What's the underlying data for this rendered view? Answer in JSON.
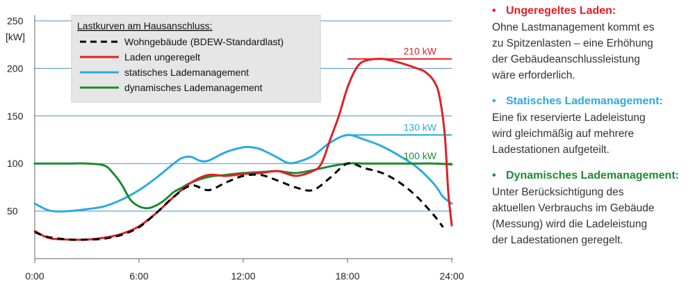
{
  "chart_data": {
    "type": "line",
    "ylabel": "[kW]",
    "ylim": [
      0,
      250
    ],
    "yticks": [
      50,
      100,
      150,
      200,
      250
    ],
    "xlim": [
      0,
      24
    ],
    "xticks": [
      0,
      6,
      12,
      18,
      24
    ],
    "xticklabels": [
      "0:00",
      "6:00",
      "12:00",
      "18:00",
      "24:00"
    ],
    "grid": true,
    "legend_title": "Lastkurven am Hausanschluss:",
    "legend_position": "top-left",
    "series": [
      {
        "name": "Wohngebäude (BDEW-Standardlast)",
        "color": "#000000",
        "style": "dashed",
        "x": [
          0,
          0.5,
          1,
          2,
          3,
          4,
          5,
          6,
          7,
          8,
          9,
          10,
          11,
          12,
          13,
          14,
          15,
          16,
          17,
          18,
          19,
          20,
          21,
          22,
          23,
          23.5
        ],
        "y": [
          28,
          24,
          22,
          20,
          20,
          21,
          25,
          33,
          48,
          65,
          77,
          72,
          80,
          87,
          88,
          82,
          75,
          72,
          85,
          100,
          95,
          90,
          80,
          65,
          45,
          33
        ]
      },
      {
        "name": "Laden ungeregelt",
        "color": "#e31e24",
        "style": "solid",
        "x": [
          0,
          0.5,
          1,
          2,
          3,
          4,
          5,
          6,
          7,
          8,
          9,
          10,
          11,
          12,
          13,
          14,
          15,
          16,
          16.5,
          17,
          17.5,
          18,
          18.5,
          19,
          20,
          21,
          22,
          22.5,
          23,
          23.3,
          23.6,
          23.8,
          24
        ],
        "y": [
          29,
          24,
          21,
          20,
          20,
          22,
          26,
          34,
          48,
          65,
          80,
          88,
          87,
          89,
          90,
          92,
          87,
          92,
          100,
          125,
          150,
          180,
          200,
          208,
          210,
          206,
          200,
          196,
          186,
          170,
          130,
          70,
          35
        ]
      },
      {
        "name": "statisches Lademanagement",
        "color": "#29abe2",
        "style": "solid",
        "x": [
          0,
          0.5,
          1,
          2,
          3,
          4,
          5,
          6,
          7,
          8,
          8.5,
          9,
          9.5,
          10,
          11,
          12,
          12.5,
          13,
          14,
          14.5,
          15,
          16,
          17,
          18,
          19,
          20,
          21,
          22,
          23,
          23.5,
          24
        ],
        "y": [
          58,
          53,
          50,
          50,
          52,
          55,
          62,
          72,
          85,
          100,
          106,
          107,
          103,
          103,
          112,
          117,
          117,
          115,
          106,
          101,
          101,
          108,
          122,
          130,
          125,
          118,
          108,
          96,
          78,
          65,
          58
        ]
      },
      {
        "name": "dynamisches Lademanagement",
        "color": "#1a8c2e",
        "style": "solid",
        "x": [
          0,
          1,
          2,
          3,
          4,
          4.5,
          5,
          5.5,
          6,
          6.5,
          7,
          7.5,
          8,
          8.5,
          9,
          10,
          11,
          12,
          13,
          14,
          15,
          16,
          17,
          18,
          19,
          20,
          21,
          22,
          23,
          24
        ],
        "y": [
          100,
          100,
          100,
          100,
          98,
          90,
          78,
          62,
          55,
          53,
          56,
          62,
          70,
          75,
          80,
          86,
          88,
          90,
          91,
          92,
          90,
          93,
          97,
          100,
          100,
          100,
          100,
          100,
          100,
          99
        ]
      }
    ],
    "annotations": [
      {
        "text": "210 kW",
        "color": "#e31e24",
        "x": 20.5,
        "y": 210
      },
      {
        "text": "130 kW",
        "color": "#29abe2",
        "x": 20.5,
        "y": 130
      },
      {
        "text": "100 kW",
        "color": "#1a8c2e",
        "x": 20.5,
        "y": 100
      }
    ],
    "reference_lines": [
      {
        "from": 18,
        "to": 24,
        "y": 210,
        "color": "#e31e24"
      },
      {
        "from": 18,
        "to": 24,
        "y": 130,
        "color": "#29abe2"
      },
      {
        "from": 18,
        "to": 24,
        "y": 100,
        "color": "#1a8c2e"
      }
    ]
  },
  "side": {
    "sections": [
      {
        "bullet": "•",
        "heading": "Ungeregeltes Laden:",
        "color": "#e31e24",
        "lines": [
          "Ohne Lastmanagement kommt es",
          "zu Spitzenlasten – eine Erhöhung",
          "der Gebäudeanschlussleistung",
          "wäre erforderlich."
        ]
      },
      {
        "bullet": "•",
        "heading": "Statisches Lademanagement:",
        "color": "#29abe2",
        "lines": [
          "Eine fix reservierte Ladeleistung",
          "wird gleichmäßig auf mehrere",
          "Ladestationen aufgeteilt."
        ]
      },
      {
        "bullet": "•",
        "heading": "Dynamisches Lademanagement:",
        "color": "#1a8c2e",
        "lines": [
          "Unter Berücksichtigung des",
          "aktuellen Verbrauchs im Gebäude",
          "(Messung) wird die Ladeleistung",
          "der Ladestationen geregelt."
        ]
      }
    ]
  }
}
